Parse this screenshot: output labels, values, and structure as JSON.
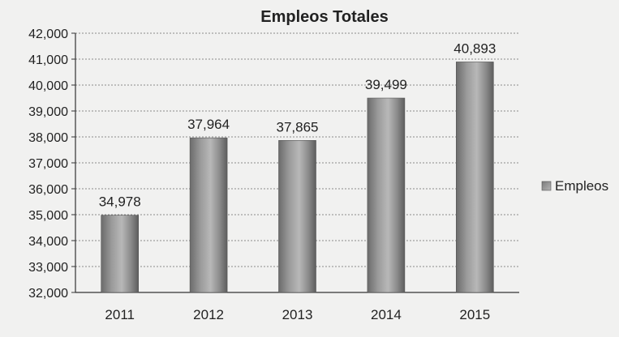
{
  "chart_data": {
    "type": "bar",
    "title": "Empleos Totales",
    "categories": [
      "2011",
      "2012",
      "2013",
      "2014",
      "2015"
    ],
    "series": [
      {
        "name": "Empleos",
        "values": [
          34978,
          37964,
          37865,
          39499,
          40893
        ]
      }
    ],
    "data_labels": [
      "34,978",
      "37,964",
      "37,865",
      "39,499",
      "40,893"
    ],
    "ylim": [
      32000,
      42000
    ],
    "yticks": [
      "32,000",
      "33,000",
      "34,000",
      "35,000",
      "36,000",
      "37,000",
      "38,000",
      "39,000",
      "40,000",
      "41,000",
      "42,000"
    ],
    "xlabel": "",
    "ylabel": "",
    "grid": true,
    "legend_position": "right",
    "colors": {
      "bar_light": "#b9b9b9",
      "bar_mid": "#8d8d8d",
      "bar_dark": "#5f5f5f",
      "grid": "#8a8a8a",
      "text": "#222222"
    }
  }
}
